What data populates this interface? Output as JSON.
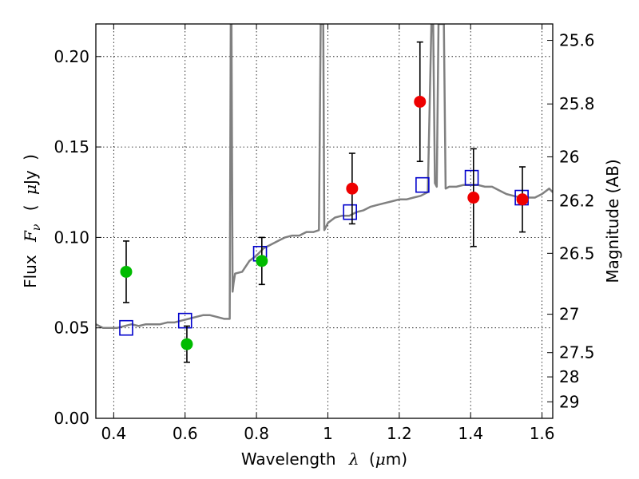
{
  "chart_data": {
    "type": "scatter",
    "title": "",
    "xlabel": "Wavelength",
    "xlabel_symbol": "λ",
    "xlabel_unit_open": "(",
    "xlabel_unit_mu": "μ",
    "xlabel_unit_rest": "m)",
    "ylabel": "Flux",
    "ylabel_symbol_F": "F",
    "ylabel_symbol_sub": "ν",
    "ylabel_unit_open": "(",
    "ylabel_unit_mu": "μ",
    "ylabel_unit_rest": "Jy",
    "ylabel_unit_close": ")",
    "y2label": "Magnitude (AB)",
    "xlim": [
      0.35,
      1.63
    ],
    "ylim": [
      0.0,
      0.218
    ],
    "grid": true,
    "x_ticks": [
      {
        "value": 0.4,
        "label": "0.4"
      },
      {
        "value": 0.6,
        "label": "0.6"
      },
      {
        "value": 0.8,
        "label": "0.8"
      },
      {
        "value": 1.0,
        "label": "1"
      },
      {
        "value": 1.2,
        "label": "1.2"
      },
      {
        "value": 1.4,
        "label": "1.4"
      },
      {
        "value": 1.6,
        "label": "1.6"
      }
    ],
    "y_ticks": [
      {
        "value": 0.0,
        "label": "0.00"
      },
      {
        "value": 0.05,
        "label": "0.05"
      },
      {
        "value": 0.1,
        "label": "0.10"
      },
      {
        "value": 0.15,
        "label": "0.15"
      },
      {
        "value": 0.2,
        "label": "0.20"
      }
    ],
    "mag_ticks": [
      {
        "value": 25.6,
        "label": "25.6"
      },
      {
        "value": 25.8,
        "label": "25.8"
      },
      {
        "value": 26.0,
        "label": "26"
      },
      {
        "value": 26.2,
        "label": "26.2"
      },
      {
        "value": 26.5,
        "label": "26.5"
      },
      {
        "value": 27.0,
        "label": "27"
      },
      {
        "value": 27.5,
        "label": "27.5"
      },
      {
        "value": 28.0,
        "label": "28"
      },
      {
        "value": 29.0,
        "label": "29"
      }
    ],
    "series": [
      {
        "kind": "line",
        "color": "#808080",
        "x": [
          0.35,
          0.37,
          0.39,
          0.41,
          0.43,
          0.45,
          0.47,
          0.49,
          0.51,
          0.53,
          0.55,
          0.57,
          0.59,
          0.61,
          0.63,
          0.65,
          0.67,
          0.69,
          0.71,
          0.725,
          0.728,
          0.73,
          0.733,
          0.736,
          0.74,
          0.76,
          0.78,
          0.8,
          0.82,
          0.84,
          0.86,
          0.88,
          0.9,
          0.92,
          0.94,
          0.96,
          0.975,
          0.98,
          0.983,
          0.987,
          0.99,
          1.0,
          1.02,
          1.04,
          1.06,
          1.08,
          1.1,
          1.12,
          1.14,
          1.16,
          1.18,
          1.2,
          1.22,
          1.24,
          1.26,
          1.28,
          1.29,
          1.295,
          1.3,
          1.305,
          1.31,
          1.315,
          1.32,
          1.325,
          1.33,
          1.34,
          1.36,
          1.38,
          1.4,
          1.42,
          1.44,
          1.46,
          1.48,
          1.5,
          1.52,
          1.54,
          1.56,
          1.58,
          1.6,
          1.62,
          1.63
        ],
        "y": [
          0.052,
          0.05,
          0.05,
          0.05,
          0.051,
          0.052,
          0.051,
          0.052,
          0.052,
          0.052,
          0.053,
          0.053,
          0.054,
          0.055,
          0.056,
          0.057,
          0.057,
          0.056,
          0.055,
          0.055,
          0.218,
          0.218,
          0.07,
          0.075,
          0.08,
          0.081,
          0.087,
          0.09,
          0.094,
          0.096,
          0.098,
          0.1,
          0.101,
          0.101,
          0.103,
          0.103,
          0.104,
          0.218,
          0.218,
          0.218,
          0.104,
          0.108,
          0.111,
          0.112,
          0.112,
          0.114,
          0.115,
          0.117,
          0.118,
          0.119,
          0.12,
          0.121,
          0.121,
          0.122,
          0.123,
          0.125,
          0.218,
          0.218,
          0.13,
          0.128,
          0.218,
          0.218,
          0.218,
          0.218,
          0.127,
          0.128,
          0.128,
          0.129,
          0.129,
          0.129,
          0.128,
          0.128,
          0.126,
          0.124,
          0.123,
          0.122,
          0.122,
          0.122,
          0.124,
          0.127,
          0.125
        ]
      },
      {
        "kind": "open-square",
        "color": "#0000cc",
        "points": [
          {
            "x": 0.435,
            "y": 0.05
          },
          {
            "x": 0.6,
            "y": 0.054
          },
          {
            "x": 0.81,
            "y": 0.091
          },
          {
            "x": 1.062,
            "y": 0.114
          },
          {
            "x": 1.265,
            "y": 0.129
          },
          {
            "x": 1.403,
            "y": 0.133
          },
          {
            "x": 1.543,
            "y": 0.122
          }
        ]
      },
      {
        "kind": "dots-with-errors",
        "color": "#00bb00",
        "points": [
          {
            "x": 0.435,
            "y": 0.081,
            "err": 0.017
          },
          {
            "x": 0.605,
            "y": 0.041,
            "err": 0.01
          },
          {
            "x": 0.815,
            "y": 0.087,
            "err": 0.013
          }
        ]
      },
      {
        "kind": "dots-with-errors",
        "color": "#ee0000",
        "points": [
          {
            "x": 1.068,
            "y": 0.127,
            "err": 0.0195
          },
          {
            "x": 1.258,
            "y": 0.175,
            "err": 0.033
          },
          {
            "x": 1.408,
            "y": 0.122,
            "err": 0.027
          },
          {
            "x": 1.545,
            "y": 0.121,
            "err": 0.018
          }
        ]
      }
    ]
  }
}
